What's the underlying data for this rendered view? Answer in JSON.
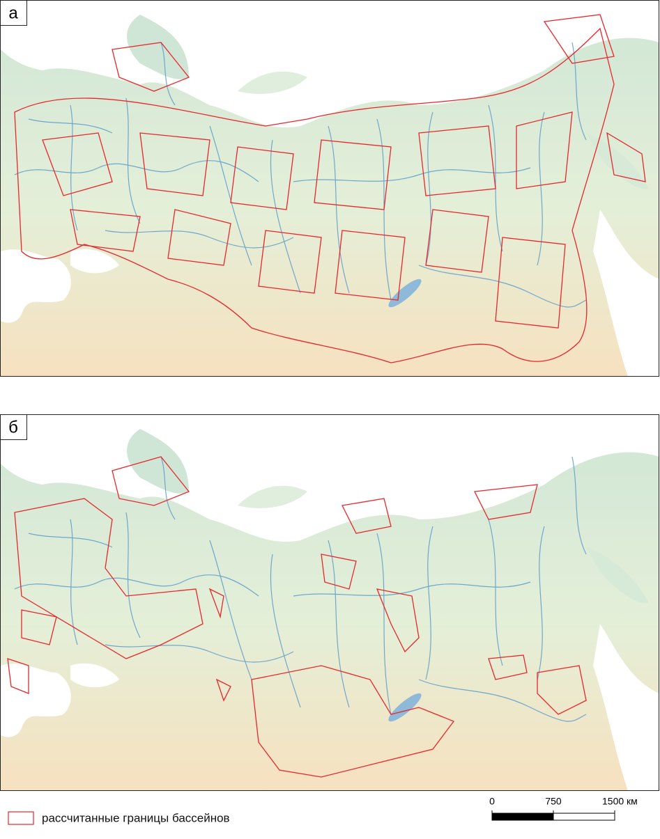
{
  "panels": [
    {
      "label": "а"
    },
    {
      "label": "б"
    }
  ],
  "legend": {
    "label": "рассчитанные границы бассейнов",
    "color": "#e8262b"
  },
  "scale_bar": {
    "ticks": [
      0,
      750,
      {
        "value": 1500,
        "label": "1500 км"
      }
    ]
  }
}
